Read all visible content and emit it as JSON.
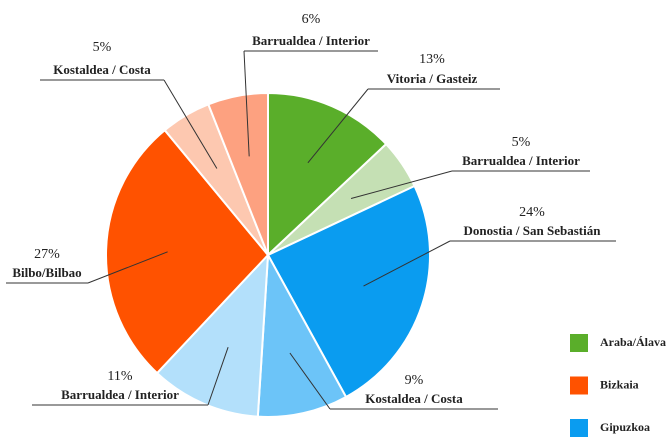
{
  "chart_data": {
    "type": "pie",
    "categories": [
      "Vitoria / Gasteiz",
      "Barrualdea / Interior",
      "Donostia / San Sebastián",
      "Kostaldea / Costa",
      "Barrualdea / Interior",
      "Bilbo/Bilbao",
      "Kostaldea / Costa",
      "Barrualdea / Interior"
    ],
    "values": [
      13,
      5,
      24,
      9,
      11,
      27,
      5,
      6
    ],
    "value_labels": [
      "13%",
      "5%",
      "24%",
      "9%",
      "11%",
      "27%",
      "5%",
      "6%"
    ],
    "colors": [
      "#5aae2a",
      "#c5e0b4",
      "#0a9cf0",
      "#6cc4f8",
      "#b3e0fb",
      "#ff5200",
      "#fdc8b0",
      "#fda180"
    ],
    "legend": [
      {
        "name": "Araba/Álava",
        "color": "#5aae2a"
      },
      {
        "name": "Bizkaia",
        "color": "#ff5200"
      },
      {
        "name": "Gipuzkoa",
        "color": "#0a9cf0"
      }
    ]
  }
}
